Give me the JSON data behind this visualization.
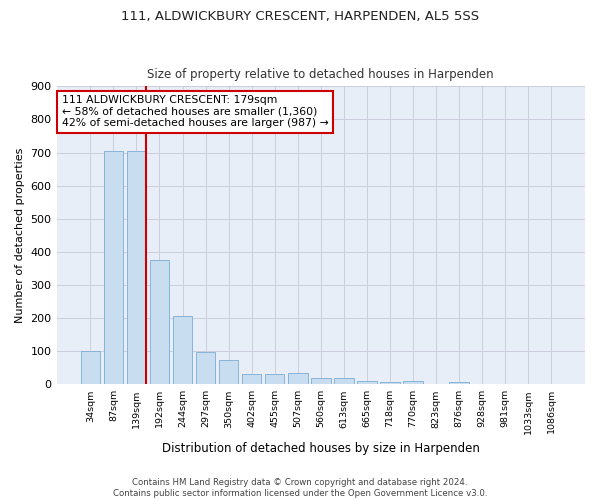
{
  "title1": "111, ALDWICKBURY CRESCENT, HARPENDEN, AL5 5SS",
  "title2": "Size of property relative to detached houses in Harpenden",
  "xlabel": "Distribution of detached houses by size in Harpenden",
  "ylabel": "Number of detached properties",
  "categories": [
    "34sqm",
    "87sqm",
    "139sqm",
    "192sqm",
    "244sqm",
    "297sqm",
    "350sqm",
    "402sqm",
    "455sqm",
    "507sqm",
    "560sqm",
    "613sqm",
    "665sqm",
    "718sqm",
    "770sqm",
    "823sqm",
    "876sqm",
    "928sqm",
    "981sqm",
    "1033sqm",
    "1086sqm"
  ],
  "values": [
    100,
    705,
    705,
    375,
    207,
    97,
    73,
    30,
    32,
    33,
    20,
    20,
    10,
    8,
    10,
    0,
    8,
    0,
    0,
    0,
    0
  ],
  "bar_color": "#c8ddf0",
  "bar_edgecolor": "#7aacd4",
  "grid_color": "#ccccdd",
  "vline_x_index": 2,
  "vline_color": "#cc0000",
  "annotation_text": "111 ALDWICKBURY CRESCENT: 179sqm\n← 58% of detached houses are smaller (1,360)\n42% of semi-detached houses are larger (987) →",
  "annotation_box_color": "#ffffff",
  "annotation_box_edgecolor": "#cc0000",
  "ylim": [
    0,
    900
  ],
  "yticks": [
    0,
    100,
    200,
    300,
    400,
    500,
    600,
    700,
    800,
    900
  ],
  "footnote": "Contains HM Land Registry data © Crown copyright and database right 2024.\nContains public sector information licensed under the Open Government Licence v3.0.",
  "bg_color": "#ffffff",
  "plot_bg_color": "#e8eef8"
}
